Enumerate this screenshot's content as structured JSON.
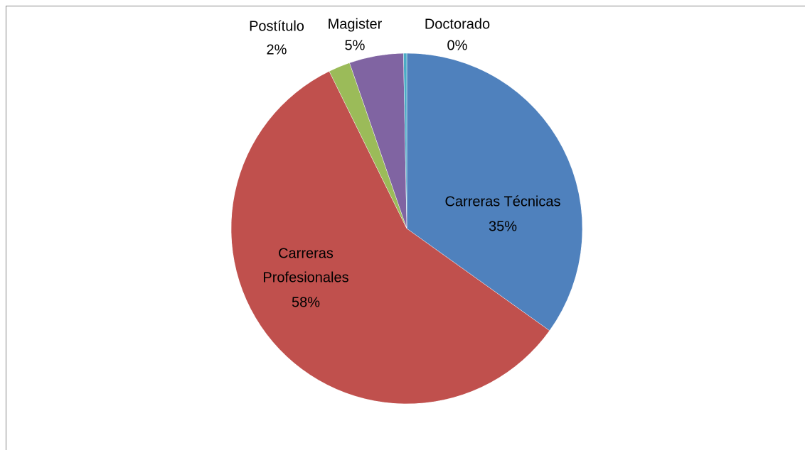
{
  "chart_data": {
    "type": "pie",
    "categories": [
      "Carreras Técnicas",
      "Carreras Profesionales",
      "Postítulo",
      "Magister",
      "Doctorado"
    ],
    "values": [
      35,
      58,
      2,
      5,
      0.3
    ],
    "value_labels": [
      "35%",
      "58%",
      "2%",
      "5%",
      "0%"
    ],
    "colors": [
      "#4f81bd",
      "#c0504d",
      "#9bbb59",
      "#8064a2",
      "#4bacc6"
    ]
  }
}
